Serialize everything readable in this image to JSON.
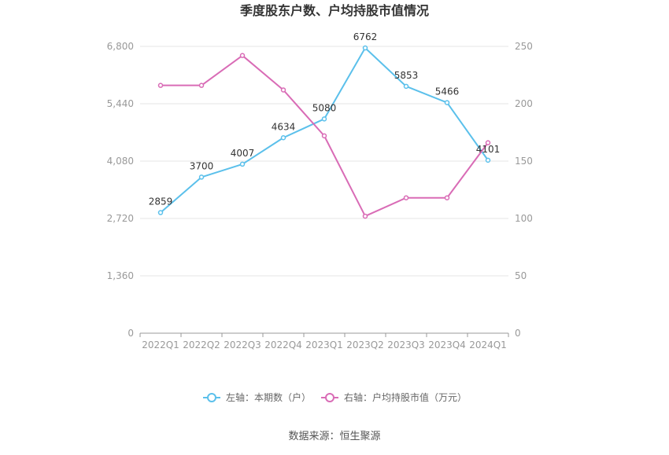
{
  "chart_data": {
    "type": "line",
    "title": "季度股东户数、户均持股市值情况",
    "categories": [
      "2022Q1",
      "2022Q2",
      "2022Q3",
      "2022Q4",
      "2023Q1",
      "2023Q2",
      "2023Q3",
      "2023Q4",
      "2024Q1"
    ],
    "left_axis": {
      "ylim": [
        0,
        6800
      ],
      "ticks": [
        "0",
        "1,360",
        "2,720",
        "4,080",
        "5,440",
        "6,800"
      ],
      "tick_values": [
        0,
        1360,
        2720,
        4080,
        5440,
        6800
      ]
    },
    "right_axis": {
      "ylim": [
        0,
        250
      ],
      "ticks": [
        "0",
        "50",
        "100",
        "150",
        "200",
        "250"
      ],
      "tick_values": [
        0,
        50,
        100,
        150,
        200,
        250
      ]
    },
    "series": [
      {
        "name": "左轴：本期数（户）",
        "axis": "left",
        "color": "#5bc0eb",
        "values": [
          2859,
          3700,
          4007,
          4634,
          5080,
          6762,
          5853,
          5466,
          4101
        ],
        "labels": [
          "2859",
          "3700",
          "4007",
          "4634",
          "5080",
          "6762",
          "5853",
          "5466",
          "4101"
        ]
      },
      {
        "name": "右轴：户均持股市值（万元）",
        "axis": "right",
        "color": "#d96cb6",
        "values": [
          216,
          216,
          242,
          212,
          172,
          102,
          118,
          118,
          166
        ]
      }
    ],
    "grid": true,
    "legend_position": "bottom"
  },
  "source": "数据来源：恒生聚源"
}
